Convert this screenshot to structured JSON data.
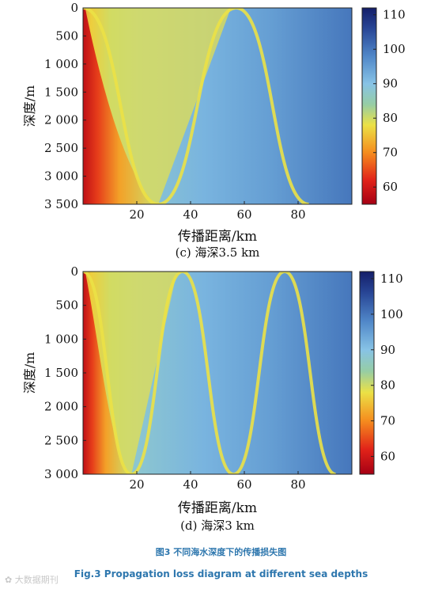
{
  "chart_data": [
    {
      "type": "heatmap",
      "panel": "c",
      "subtitle": "(c) 海深3.5 km",
      "xlabel": "传播距离/km",
      "ylabel": "深度/m",
      "x_ticks": [
        "20",
        "40",
        "60",
        "80"
      ],
      "y_ticks": [
        "0",
        "500",
        "1 000",
        "1 500",
        "2 000",
        "2 500",
        "3 000",
        "3 500"
      ],
      "xlim": [
        0,
        100
      ],
      "ylim": [
        3500,
        0
      ],
      "colorbar": {
        "ticks": [
          "60",
          "70",
          "80",
          "90",
          "100",
          "110"
        ],
        "range": [
          55,
          112
        ]
      },
      "caustic_x_km": [
        28,
        57,
        84
      ],
      "values_summary": {
        "near_source": 60,
        "convergence_zone": 78,
        "shadow_zone": 95,
        "far_field": 100
      }
    },
    {
      "type": "heatmap",
      "panel": "d",
      "subtitle": "(d) 海深3 km",
      "xlabel": "传播距离/km",
      "ylabel": "深度/m",
      "x_ticks": [
        "20",
        "40",
        "60",
        "80"
      ],
      "y_ticks": [
        "0",
        "500",
        "1 000",
        "1 500",
        "2 000",
        "2 500",
        "3 000"
      ],
      "xlim": [
        0,
        100
      ],
      "ylim": [
        3000,
        0
      ],
      "colorbar": {
        "ticks": [
          "60",
          "70",
          "80",
          "90",
          "100",
          "110"
        ],
        "range": [
          55,
          112
        ]
      },
      "caustic_x_km": [
        18,
        37,
        56,
        75,
        94
      ],
      "values_summary": {
        "near_source": 60,
        "convergence_zone": 78,
        "shadow_zone": 95,
        "far_field": 100
      }
    }
  ],
  "caption_cn": "图3 不同海水深度下的传播损失图",
  "caption_en": "Fig.3 Propagation loss diagram at different sea depths",
  "watermark": "大数据期刊",
  "colors": {
    "caption": "#2e77ae"
  }
}
